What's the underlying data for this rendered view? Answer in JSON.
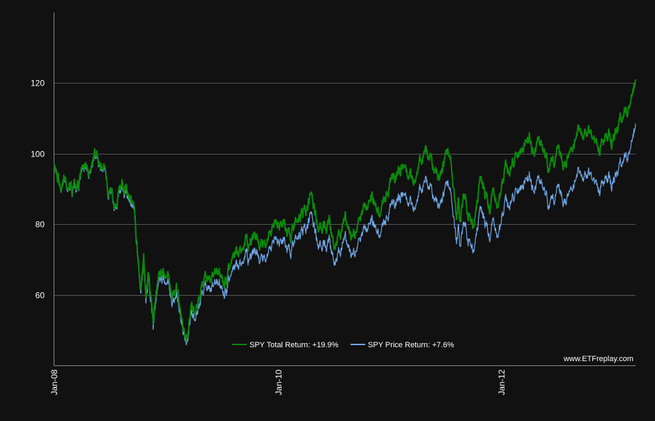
{
  "colors": {
    "background": "#111111",
    "grid": "#555555",
    "axis": "#888888",
    "total_return": "#0a8a0a",
    "price_return": "#6fa8e8",
    "text": "#ffffff"
  },
  "credit": "www.ETFreplay.com",
  "chart_data": {
    "type": "line",
    "title": "",
    "xlabel": "",
    "ylabel": "",
    "x_range": [
      "2008-01-02",
      "2013-03-15"
    ],
    "ylim": [
      40,
      140
    ],
    "grid": "horizontal",
    "legend_position": "bottom-center",
    "x_tick_labels": [
      {
        "date": "2008-01-02",
        "label": "Jan-08"
      },
      {
        "date": "2010-01-04",
        "label": "Jan-10"
      },
      {
        "date": "2012-01-03",
        "label": "Jan-12"
      }
    ],
    "y_ticks": [
      60,
      80,
      100,
      120
    ],
    "series": [
      {
        "name": "SPY Total Return: +19.9%",
        "color": "#0a8a0a",
        "points": [
          [
            "2008-01-02",
            97.5
          ],
          [
            "2008-01-22",
            90.5
          ],
          [
            "2008-02-05",
            93.5
          ],
          [
            "2008-03-10",
            89.5
          ],
          [
            "2008-04-15",
            95.5
          ],
          [
            "2008-05-19",
            99.0
          ],
          [
            "2008-06-10",
            95.0
          ],
          [
            "2008-06-27",
            89.0
          ],
          [
            "2008-07-15",
            84.5
          ],
          [
            "2008-08-11",
            91.0
          ],
          [
            "2008-09-02",
            88.5
          ],
          [
            "2008-09-19",
            83.0
          ],
          [
            "2008-10-10",
            63.0
          ],
          [
            "2008-10-20",
            70.0
          ],
          [
            "2008-10-27",
            59.0
          ],
          [
            "2008-11-04",
            66.0
          ],
          [
            "2008-11-20",
            53.0
          ],
          [
            "2008-12-08",
            63.0
          ],
          [
            "2009-01-06",
            66.0
          ],
          [
            "2009-01-20",
            58.5
          ],
          [
            "2009-02-09",
            61.0
          ],
          [
            "2009-03-09",
            47.5
          ],
          [
            "2009-03-26",
            56.0
          ],
          [
            "2009-04-20",
            58.5
          ],
          [
            "2009-05-08",
            63.0
          ],
          [
            "2009-06-12",
            66.0
          ],
          [
            "2009-07-10",
            63.5
          ],
          [
            "2009-08-07",
            70.0
          ],
          [
            "2009-09-18",
            76.0
          ],
          [
            "2009-10-02",
            73.5
          ],
          [
            "2009-10-19",
            77.5
          ],
          [
            "2009-11-02",
            74.0
          ],
          [
            "2009-12-15",
            79.0
          ],
          [
            "2010-01-19",
            81.0
          ],
          [
            "2010-02-08",
            76.5
          ],
          [
            "2010-03-15",
            82.5
          ],
          [
            "2010-04-23",
            88.0
          ],
          [
            "2010-05-07",
            81.0
          ],
          [
            "2010-05-25",
            76.0
          ],
          [
            "2010-06-18",
            80.5
          ],
          [
            "2010-07-02",
            74.5
          ],
          [
            "2010-08-09",
            81.0
          ],
          [
            "2010-08-27",
            75.5
          ],
          [
            "2010-09-30",
            82.5
          ],
          [
            "2010-11-05",
            87.0
          ],
          [
            "2010-11-30",
            84.0
          ],
          [
            "2010-12-31",
            90.0
          ],
          [
            "2011-02-18",
            97.5
          ],
          [
            "2011-03-16",
            92.5
          ],
          [
            "2011-04-29",
            100.0
          ],
          [
            "2011-06-15",
            93.0
          ],
          [
            "2011-07-07",
            100.5
          ],
          [
            "2011-07-22",
            97.5
          ],
          [
            "2011-08-08",
            82.0
          ],
          [
            "2011-08-15",
            88.0
          ],
          [
            "2011-08-19",
            81.5
          ],
          [
            "2011-09-01",
            88.5
          ],
          [
            "2011-09-22",
            81.0
          ],
          [
            "2011-10-03",
            78.5
          ],
          [
            "2011-10-27",
            92.0
          ],
          [
            "2011-11-25",
            84.5
          ],
          [
            "2011-12-07",
            90.5
          ],
          [
            "2011-12-19",
            85.5
          ],
          [
            "2012-01-10",
            94.0
          ],
          [
            "2012-02-15",
            99.0
          ],
          [
            "2012-04-02",
            104.5
          ],
          [
            "2012-04-10",
            100.0
          ],
          [
            "2012-05-01",
            104.0
          ],
          [
            "2012-06-04",
            95.5
          ],
          [
            "2012-07-03",
            100.5
          ],
          [
            "2012-07-24",
            97.5
          ],
          [
            "2012-09-14",
            107.0
          ],
          [
            "2012-10-05",
            106.5
          ],
          [
            "2012-11-15",
            101.0
          ],
          [
            "2012-12-18",
            106.0
          ],
          [
            "2012-12-28",
            103.5
          ],
          [
            "2013-01-15",
            109.0
          ],
          [
            "2013-02-25",
            114.0
          ],
          [
            "2013-03-15",
            120.0
          ]
        ]
      },
      {
        "name": "SPY Price Return: +7.6%",
        "color": "#6fa8e8",
        "points": [
          [
            "2008-01-02",
            97.5
          ],
          [
            "2008-01-22",
            90.5
          ],
          [
            "2008-02-05",
            93.0
          ],
          [
            "2008-03-10",
            89.0
          ],
          [
            "2008-04-15",
            95.0
          ],
          [
            "2008-05-19",
            98.5
          ],
          [
            "2008-06-10",
            94.5
          ],
          [
            "2008-06-27",
            88.5
          ],
          [
            "2008-07-15",
            84.0
          ],
          [
            "2008-08-11",
            90.0
          ],
          [
            "2008-09-02",
            87.5
          ],
          [
            "2008-09-19",
            82.0
          ],
          [
            "2008-10-10",
            62.0
          ],
          [
            "2008-10-20",
            68.5
          ],
          [
            "2008-10-27",
            57.5
          ],
          [
            "2008-11-04",
            64.5
          ],
          [
            "2008-11-20",
            51.5
          ],
          [
            "2008-12-08",
            61.5
          ],
          [
            "2009-01-06",
            64.0
          ],
          [
            "2009-01-20",
            56.5
          ],
          [
            "2009-02-09",
            59.0
          ],
          [
            "2009-03-09",
            46.5
          ],
          [
            "2009-03-26",
            54.0
          ],
          [
            "2009-04-20",
            56.5
          ],
          [
            "2009-05-08",
            60.5
          ],
          [
            "2009-06-12",
            63.0
          ],
          [
            "2009-07-10",
            60.5
          ],
          [
            "2009-08-07",
            66.5
          ],
          [
            "2009-09-18",
            72.0
          ],
          [
            "2009-10-02",
            69.5
          ],
          [
            "2009-10-19",
            73.0
          ],
          [
            "2009-11-02",
            70.0
          ],
          [
            "2009-12-15",
            74.5
          ],
          [
            "2010-01-19",
            76.0
          ],
          [
            "2010-02-08",
            72.0
          ],
          [
            "2010-03-15",
            77.5
          ],
          [
            "2010-04-23",
            82.5
          ],
          [
            "2010-05-07",
            76.0
          ],
          [
            "2010-05-25",
            71.0
          ],
          [
            "2010-06-18",
            75.0
          ],
          [
            "2010-07-02",
            70.0
          ],
          [
            "2010-08-09",
            75.5
          ],
          [
            "2010-08-27",
            70.5
          ],
          [
            "2010-09-30",
            76.5
          ],
          [
            "2010-11-05",
            80.5
          ],
          [
            "2010-11-30",
            78.0
          ],
          [
            "2010-12-31",
            83.0
          ],
          [
            "2011-02-18",
            89.5
          ],
          [
            "2011-03-16",
            85.0
          ],
          [
            "2011-04-29",
            91.5
          ],
          [
            "2011-06-15",
            85.0
          ],
          [
            "2011-07-07",
            91.5
          ],
          [
            "2011-07-22",
            88.5
          ],
          [
            "2011-08-08",
            75.0
          ],
          [
            "2011-08-15",
            80.5
          ],
          [
            "2011-08-19",
            74.5
          ],
          [
            "2011-09-01",
            80.5
          ],
          [
            "2011-09-22",
            74.0
          ],
          [
            "2011-10-03",
            71.5
          ],
          [
            "2011-10-27",
            83.5
          ],
          [
            "2011-11-25",
            76.5
          ],
          [
            "2011-12-07",
            82.0
          ],
          [
            "2011-12-19",
            77.0
          ],
          [
            "2012-01-10",
            84.5
          ],
          [
            "2012-02-15",
            89.0
          ],
          [
            "2012-04-02",
            93.5
          ],
          [
            "2012-04-10",
            89.5
          ],
          [
            "2012-05-01",
            93.0
          ],
          [
            "2012-06-04",
            85.0
          ],
          [
            "2012-07-03",
            89.5
          ],
          [
            "2012-07-24",
            87.0
          ],
          [
            "2012-09-14",
            95.0
          ],
          [
            "2012-10-05",
            94.5
          ],
          [
            "2012-11-15",
            89.5
          ],
          [
            "2012-12-18",
            94.0
          ],
          [
            "2012-12-28",
            91.5
          ],
          [
            "2013-01-15",
            96.5
          ],
          [
            "2013-02-25",
            101.0
          ],
          [
            "2013-03-15",
            107.5
          ]
        ]
      }
    ]
  }
}
